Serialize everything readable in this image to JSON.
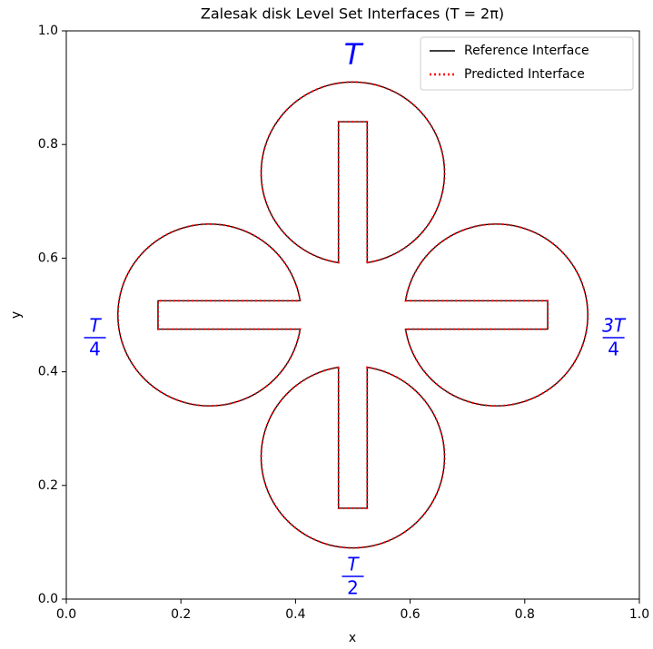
{
  "chart_data": {
    "type": "level-set",
    "title": "Zalesak disk Level Set Interfaces (T = 2π)",
    "xlabel": "x",
    "ylabel": "y",
    "xlim": [
      0,
      1
    ],
    "ylim": [
      0,
      1
    ],
    "xticks": [
      {
        "value": 0,
        "label": "0.0"
      },
      0.2,
      0.4,
      0.6,
      0.8,
      {
        "value": 1,
        "label": "1.0"
      }
    ],
    "yticks": [
      {
        "value": 0,
        "label": "0.0"
      },
      0.2,
      0.4,
      0.6,
      0.8,
      {
        "value": 1,
        "label": "1.0"
      }
    ],
    "legend": "upper right",
    "series": [
      {
        "name": "Reference Interface",
        "color": "#000000",
        "style": "solid"
      },
      {
        "name": "Predicted Interface",
        "color": "#ff0000",
        "style": "dotted"
      }
    ],
    "disks": [
      {
        "center": [
          0.5,
          0.75
        ],
        "radius": 0.16,
        "slot_width": 0.05,
        "slot_length": 0.25,
        "opening": -90
      },
      {
        "center": [
          0.25,
          0.5
        ],
        "radius": 0.16,
        "slot_width": 0.05,
        "slot_length": 0.25,
        "opening": 0
      },
      {
        "center": [
          0.5,
          0.25
        ],
        "radius": 0.16,
        "slot_width": 0.05,
        "slot_length": 0.25,
        "opening": 90
      },
      {
        "center": [
          0.75,
          0.5
        ],
        "radius": 0.16,
        "slot_width": 0.05,
        "slot_length": 0.25,
        "opening": 180
      }
    ],
    "annotations": [
      {
        "text": "T",
        "x": 0.5,
        "y": 0.955
      },
      {
        "numerator": "T",
        "denominator": "4",
        "x": 0.05,
        "y": 0.46
      },
      {
        "numerator": "T",
        "denominator": "2",
        "x": 0.5,
        "y": 0.04
      },
      {
        "numerator": "3T",
        "denominator": "4",
        "x": 0.955,
        "y": 0.46
      }
    ],
    "annotation_color": "#0000ff"
  }
}
